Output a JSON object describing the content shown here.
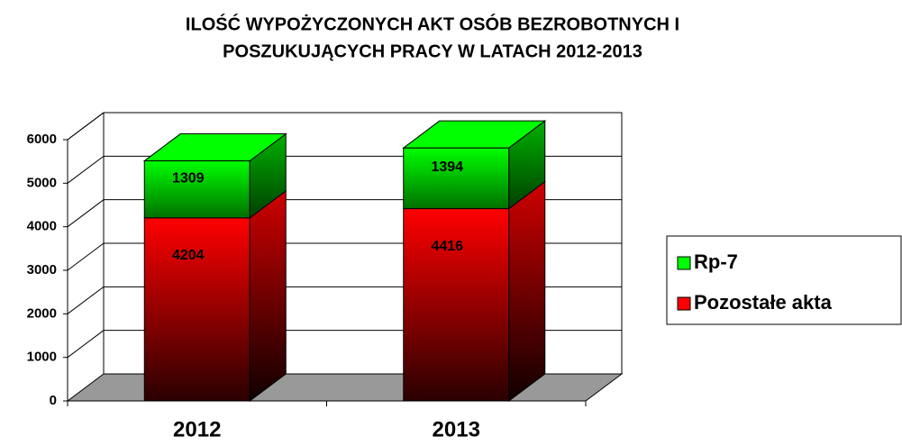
{
  "chart_data": {
    "type": "bar3d_stacked",
    "title": [
      "ILOŚĆ WYPOŻYCZONYCH AKT OSÓB BEZROBOTNYCH I",
      "POSZUKUJĄCYCH PRACY W LATACH 2012-2013"
    ],
    "categories": [
      "2012",
      "2013"
    ],
    "series": [
      {
        "name": "Pozostałe akta",
        "color": "#ff0000",
        "values": [
          4204,
          4416
        ]
      },
      {
        "name": "Rp-7",
        "color": "#00ff00",
        "values": [
          1309,
          1394
        ]
      }
    ],
    "ylim": [
      0,
      6000
    ],
    "yticks": [
      0,
      1000,
      2000,
      3000,
      4000,
      5000,
      6000
    ],
    "grid": true,
    "legend": "right"
  }
}
